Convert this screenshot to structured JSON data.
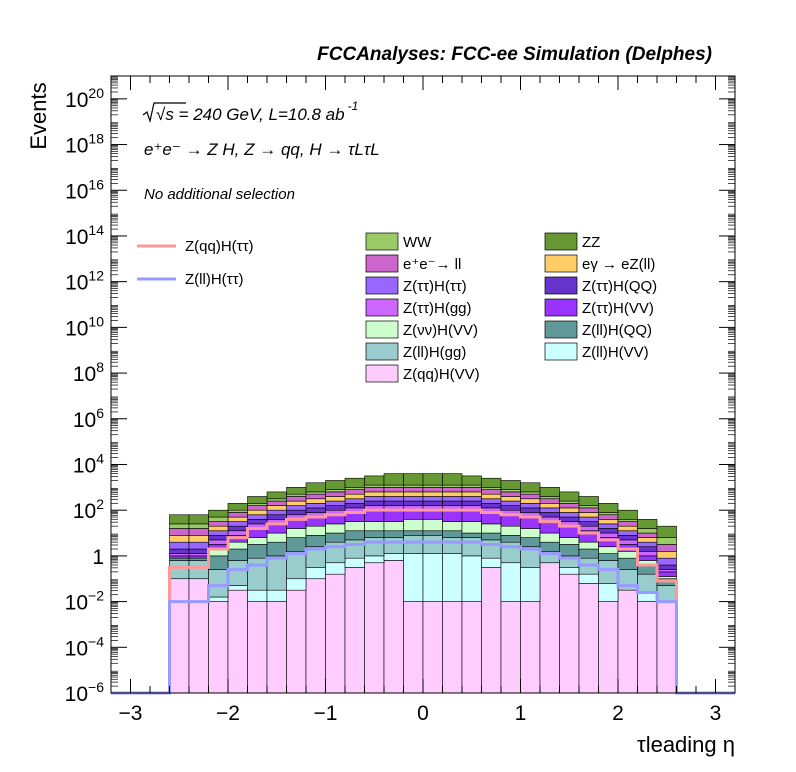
{
  "chart_data": {
    "type": "histogram-stacked",
    "title": "FCCAnalyses: FCC-ee Simulation (Delphes)",
    "annotations": [
      {
        "key": "energy",
        "parts": [
          "√s = 240 GeV, L=10.8 ab",
          "-1"
        ]
      },
      {
        "key": "process",
        "text": "e⁺e⁻ → Z H, Z → qq, H → τLτL"
      },
      {
        "key": "selection",
        "text": "No additional selection"
      }
    ],
    "xlabel": "τleading η",
    "ylabel": "Events",
    "xlim": [
      -3.2,
      3.2
    ],
    "ylim": [
      1e-06,
      1e+21
    ],
    "yscale": "log",
    "x_ticks": [
      "−3",
      "−2",
      "−1",
      "0",
      "1",
      "2",
      "3"
    ],
    "y_ticks": [
      "10^-6",
      "10^-4",
      "10^-2",
      "1",
      "10^2",
      "10^4",
      "10^6",
      "10^8",
      "10^10",
      "10^12",
      "10^14",
      "10^16",
      "10^18",
      "10^20"
    ],
    "bin_edges": [
      -3.2,
      -3.0,
      -2.8,
      -2.6,
      -2.4,
      -2.2,
      -2.0,
      -1.8,
      -1.6,
      -1.4,
      -1.2,
      -1.0,
      -0.8,
      -0.6,
      -0.4,
      -0.2,
      0.0,
      0.2,
      0.4,
      0.6,
      0.8,
      1.0,
      1.2,
      1.4,
      1.6,
      1.8,
      2.0,
      2.2,
      2.4,
      2.6,
      2.8,
      3.0,
      3.2
    ],
    "stack_levels_log10": [
      [
        -6,
        -6,
        -6,
        -1.0,
        -1.0,
        -2.0,
        -1.5,
        -2.0,
        -2.0,
        -1.5,
        -1.0,
        -0.8,
        -0.5,
        -0.3,
        -0.2,
        -2.0,
        -2.0,
        -2.0,
        -2.0,
        -0.5,
        -2.0,
        -2.0,
        -0.3,
        -0.8,
        -1.2,
        -2.0,
        -1.5,
        -2.0,
        -2.0,
        -6,
        -6,
        -6
      ],
      [
        -6,
        -6,
        -6,
        -1.0,
        -1.0,
        -1.8,
        -1.3,
        -1.5,
        -1.5,
        -1.0,
        -0.5,
        -0.3,
        -0.1,
        0.0,
        0.1,
        0.1,
        0.1,
        0.1,
        0.0,
        -0.1,
        -0.3,
        -0.5,
        -0.3,
        -0.5,
        -0.8,
        -1.2,
        -1.5,
        -1.6,
        -2.0,
        -6,
        -6,
        -6
      ],
      [
        -6,
        -6,
        -6,
        -0.2,
        -0.2,
        -0.6,
        -0.2,
        -0.1,
        0.0,
        0.2,
        0.4,
        0.6,
        0.7,
        0.8,
        0.8,
        0.9,
        0.9,
        0.8,
        0.8,
        0.7,
        0.6,
        0.4,
        0.2,
        0.0,
        -0.1,
        -0.2,
        -0.6,
        -0.8,
        -1.3,
        -6,
        -6,
        -6
      ],
      [
        -6,
        -6,
        -6,
        -0.1,
        -0.1,
        0.0,
        0.3,
        0.5,
        0.6,
        0.8,
        0.9,
        1.0,
        1.1,
        1.1,
        1.1,
        1.1,
        1.1,
        1.1,
        1.0,
        1.0,
        0.9,
        0.8,
        0.6,
        0.5,
        0.3,
        0.1,
        -0.1,
        -0.4,
        -1.0,
        -6,
        -6,
        -6
      ],
      [
        -6,
        -6,
        -6,
        -0.1,
        -0.1,
        0.3,
        0.6,
        0.8,
        1.0,
        1.2,
        1.3,
        1.4,
        1.5,
        1.5,
        1.5,
        1.6,
        1.6,
        1.5,
        1.5,
        1.4,
        1.3,
        1.2,
        1.0,
        0.8,
        0.6,
        0.4,
        0.2,
        -0.2,
        -0.9,
        -6,
        -6,
        -6
      ],
      [
        -6,
        -6,
        -6,
        0.0,
        0.0,
        0.5,
        0.9,
        1.2,
        1.4,
        1.6,
        1.7,
        1.8,
        1.9,
        2.0,
        2.0,
        2.0,
        2.0,
        2.0,
        2.0,
        1.9,
        1.8,
        1.7,
        1.5,
        1.3,
        1.1,
        0.8,
        0.5,
        0.0,
        -0.7,
        -6,
        -6,
        -6
      ],
      [
        -6,
        -6,
        -6,
        0.1,
        0.1,
        0.7,
        1.1,
        1.4,
        1.6,
        1.8,
        1.9,
        2.0,
        2.1,
        2.2,
        2.2,
        2.2,
        2.2,
        2.2,
        2.2,
        2.1,
        2.0,
        1.9,
        1.7,
        1.5,
        1.3,
        1.0,
        0.7,
        0.2,
        -0.6,
        -6,
        -6,
        -6
      ],
      [
        -6,
        -6,
        -6,
        0.3,
        0.3,
        0.9,
        1.3,
        1.6,
        1.8,
        2.0,
        2.1,
        2.2,
        2.3,
        2.4,
        2.4,
        2.4,
        2.4,
        2.4,
        2.4,
        2.3,
        2.2,
        2.1,
        1.9,
        1.7,
        1.5,
        1.2,
        0.9,
        0.4,
        -0.4,
        -6,
        -6,
        -6
      ],
      [
        -6,
        -6,
        -6,
        0.6,
        0.6,
        1.1,
        1.5,
        1.8,
        2.0,
        2.2,
        2.3,
        2.4,
        2.5,
        2.6,
        2.6,
        2.6,
        2.6,
        2.6,
        2.6,
        2.5,
        2.4,
        2.3,
        2.1,
        1.9,
        1.7,
        1.4,
        1.1,
        0.6,
        -0.1,
        -6,
        -6,
        -6
      ],
      [
        -6,
        -6,
        -6,
        0.9,
        0.9,
        1.3,
        1.7,
        2.0,
        2.2,
        2.4,
        2.5,
        2.6,
        2.7,
        2.8,
        2.8,
        2.8,
        2.8,
        2.8,
        2.8,
        2.7,
        2.6,
        2.5,
        2.3,
        2.1,
        1.9,
        1.6,
        1.3,
        0.8,
        0.2,
        -6,
        -6,
        -6
      ],
      [
        -6,
        -6,
        -6,
        1.2,
        1.2,
        1.5,
        1.9,
        2.2,
        2.4,
        2.6,
        2.7,
        2.8,
        2.9,
        3.0,
        3.0,
        3.0,
        3.0,
        3.0,
        3.0,
        2.9,
        2.8,
        2.7,
        2.5,
        2.3,
        2.1,
        1.8,
        1.5,
        1.0,
        0.5,
        -6,
        -6,
        -6
      ],
      [
        -6,
        -6,
        -6,
        1.4,
        1.4,
        1.7,
        2.0,
        2.3,
        2.5,
        2.7,
        2.8,
        2.9,
        3.0,
        3.1,
        3.1,
        3.1,
        3.1,
        3.1,
        3.1,
        3.0,
        2.9,
        2.8,
        2.6,
        2.4,
        2.2,
        1.9,
        1.6,
        1.2,
        0.8,
        -6,
        -6,
        -6
      ],
      [
        -6,
        -6,
        -6,
        1.8,
        1.8,
        2.0,
        2.3,
        2.6,
        2.8,
        3.0,
        3.2,
        3.3,
        3.4,
        3.5,
        3.6,
        3.6,
        3.6,
        3.6,
        3.5,
        3.4,
        3.3,
        3.2,
        3.0,
        2.8,
        2.6,
        2.3,
        2.0,
        1.6,
        1.3,
        -6,
        -6,
        -6
      ],
      [
        -6,
        -6,
        -6,
        2.3,
        2.3,
        2.6,
        2.9,
        3.1,
        3.3,
        3.5,
        3.7,
        3.8,
        3.9,
        4.0,
        4.0,
        4.05,
        4.05,
        4.0,
        4.0,
        3.9,
        3.8,
        3.7,
        3.5,
        3.3,
        3.1,
        2.9,
        2.6,
        2.3,
        2.1,
        -6,
        -6,
        -6
      ]
    ],
    "series": [
      {
        "name": "Z(qq)H(VV)",
        "color": "#ffccff"
      },
      {
        "name": "Z(ll)H(VV)",
        "color": "#ccffff"
      },
      {
        "name": "Z(ll)H(gg)",
        "color": "#99cccc"
      },
      {
        "name": "Z(ll)H(QQ)",
        "color": "#5f9999"
      },
      {
        "name": "Z(νν)H(VV)",
        "color": "#ccffcc"
      },
      {
        "name": "Z(ττ)H(VV)",
        "color": "#9933ff"
      },
      {
        "name": "Z(ττ)H(gg)",
        "color": "#cc66ff"
      },
      {
        "name": "Z(ττ)H(QQ)",
        "color": "#6633cc"
      },
      {
        "name": "Z(ττ)H(ττ)",
        "color": "#9966ff"
      },
      {
        "name": "eγ → eZ(ll)",
        "color": "#ffcc66"
      },
      {
        "name": "e⁺e⁻→ ll",
        "color": "#cc66cc"
      },
      {
        "name": "WW",
        "color": "#99cc66"
      },
      {
        "name": "ZZ",
        "color": "#669933"
      }
    ],
    "lines": [
      {
        "name": "Z(qq)H(ττ)",
        "color": "#ff9999",
        "y_log10": [
          -6,
          -6,
          -6,
          -0.5,
          -0.5,
          0.3,
          0.8,
          1.2,
          1.4,
          1.6,
          1.7,
          1.8,
          1.9,
          2.0,
          2.0,
          2.0,
          2.0,
          2.0,
          2.0,
          1.9,
          1.8,
          1.7,
          1.5,
          1.3,
          1.0,
          0.7,
          0.3,
          -0.4,
          -1.1,
          -6,
          -6,
          -6
        ]
      },
      {
        "name": "Z(ll)H(ττ)",
        "color": "#9999ff",
        "y_log10": [
          -6,
          -6,
          -6,
          -2.0,
          -2.0,
          -1.3,
          -0.6,
          -0.4,
          -0.1,
          0.1,
          0.3,
          0.4,
          0.5,
          0.6,
          0.6,
          0.6,
          0.6,
          0.6,
          0.6,
          0.5,
          0.4,
          0.3,
          0.1,
          -0.1,
          -0.4,
          -0.6,
          -1.3,
          -1.6,
          -2.0,
          -6,
          -6,
          -6
        ]
      }
    ],
    "legend": {
      "placement": "top",
      "columns": [
        [
          "WW",
          "e⁺e⁻→ ll",
          "Z(ττ)H(ττ)",
          "Z(ττ)H(gg)",
          "Z(νν)H(VV)",
          "Z(ll)H(gg)",
          "Z(qq)H(VV)"
        ],
        [
          "ZZ",
          "eγ → eZ(ll)",
          "Z(ττ)H(QQ)",
          "Z(ττ)H(VV)",
          "Z(ll)H(QQ)",
          "Z(ll)H(VV)"
        ]
      ],
      "line_entries": [
        "Z(qq)H(ττ)",
        "Z(ll)H(ττ)"
      ]
    }
  }
}
